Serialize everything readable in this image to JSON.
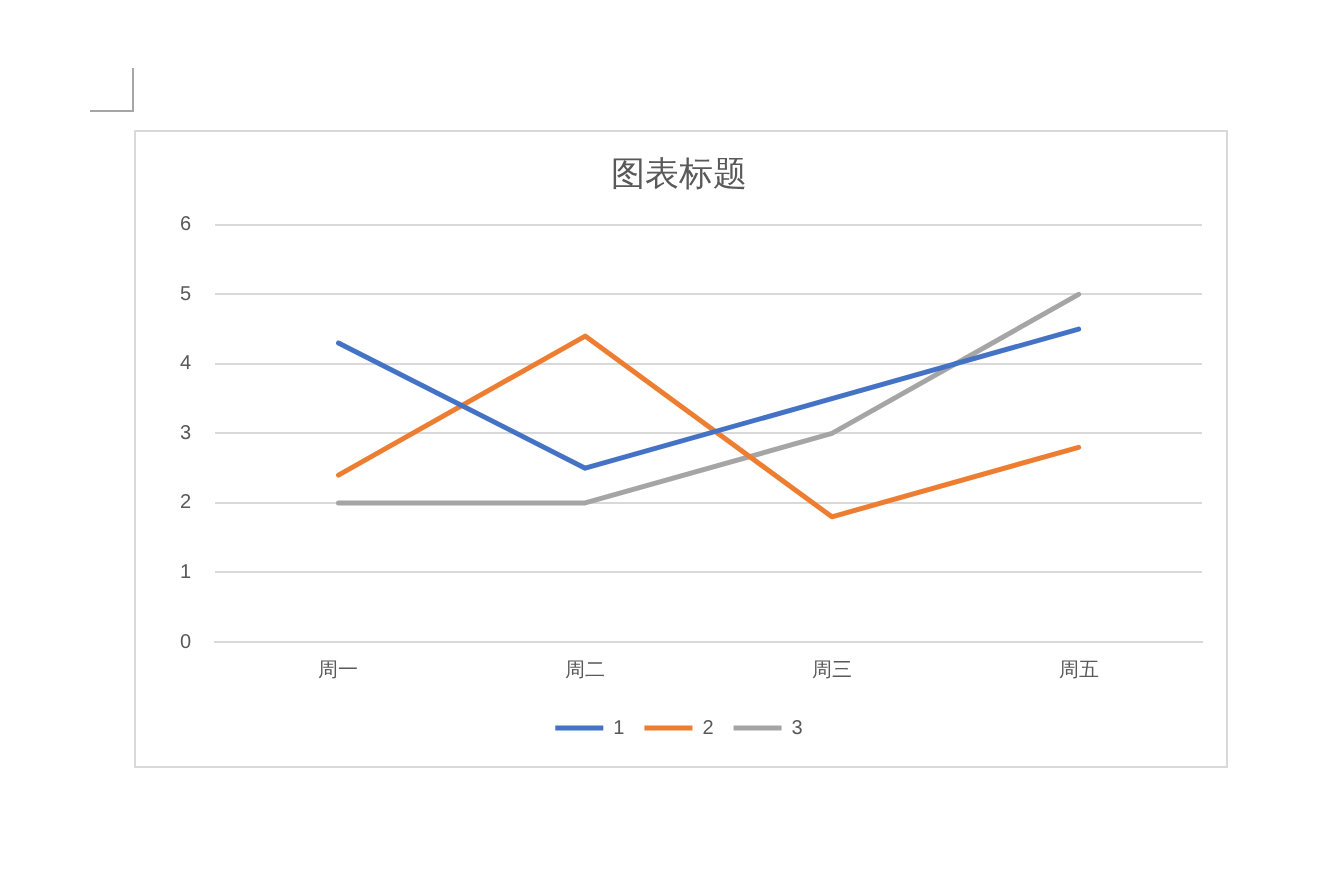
{
  "chart_data": {
    "type": "line",
    "title": "图表标题",
    "categories": [
      "周一",
      "周二",
      "周三",
      "周五"
    ],
    "series": [
      {
        "name": "1",
        "color": "#4472c4",
        "values": [
          4.3,
          2.5,
          3.5,
          4.5
        ]
      },
      {
        "name": "2",
        "color": "#ed7d31",
        "values": [
          2.4,
          4.4,
          1.8,
          2.8
        ]
      },
      {
        "name": "3",
        "color": "#a5a5a5",
        "values": [
          2,
          2,
          3,
          5
        ]
      }
    ],
    "ylim": [
      0,
      6
    ],
    "yticks": [
      0,
      1,
      2,
      3,
      4,
      5,
      6
    ],
    "grid": "y",
    "legend": "bottom",
    "marker": "none",
    "line_style": "solid"
  }
}
